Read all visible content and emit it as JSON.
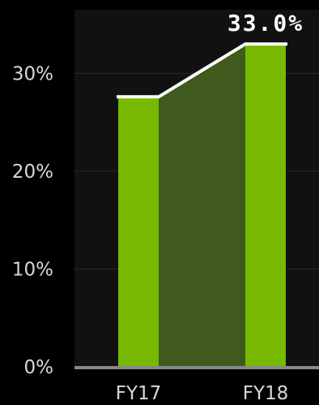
{
  "chart_data": {
    "type": "bar",
    "categories": [
      "FY17",
      "FY18"
    ],
    "values": [
      27.6,
      33.0
    ],
    "data_labels": [
      "",
      "33.0%"
    ],
    "yticks": [
      {
        "value": 0,
        "label": "0%"
      },
      {
        "value": 10,
        "label": "10%"
      },
      {
        "value": 20,
        "label": "20%"
      },
      {
        "value": 30,
        "label": "30%"
      }
    ],
    "ylim": [
      0,
      36.5
    ],
    "grid": true,
    "connector_line": true,
    "colors": {
      "background": "#000000",
      "plot_background": "#111111",
      "bar": "#76b900",
      "connector_fill": "#3f5a1c",
      "connector_line": "#ffffff",
      "grid": "#2a2a2a",
      "baseline": "#888888"
    }
  }
}
